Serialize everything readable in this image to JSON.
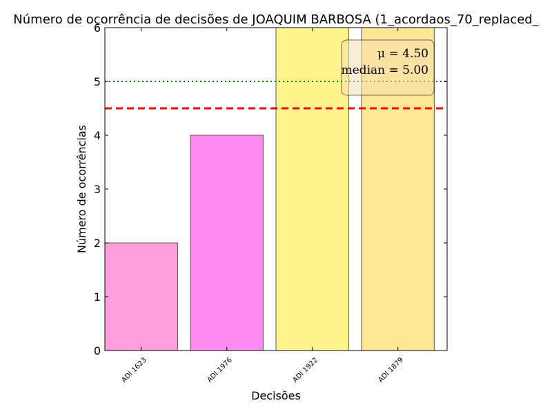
{
  "chart_data": {
    "type": "bar",
    "title": "Número de ocorrência de decisões de JOAQUIM BARBOSA (1_acordaos_70_replaced_",
    "xlabel": "Decisões",
    "ylabel": "Número de ocorrências",
    "categories": [
      "ADI 1623",
      "ADI 1976",
      "ADI 1922",
      "ADI 1879"
    ],
    "values": [
      2,
      4,
      6,
      6
    ],
    "bar_colors": [
      "#ffa0dc",
      "#ff8cf0",
      "#fff58c",
      "#ffe696"
    ],
    "ylim": [
      0,
      6
    ],
    "yticks": [
      "0",
      "1",
      "2",
      "3",
      "4",
      "5",
      "6"
    ],
    "grid": false,
    "mean": 4.5,
    "median": 5.0,
    "mean_line_color": "#ff0000",
    "median_line_color": "#008000",
    "stats_box": {
      "mean_label": "μ = 4.50",
      "median_label": "median = 5.00",
      "placement": "top-right"
    }
  }
}
